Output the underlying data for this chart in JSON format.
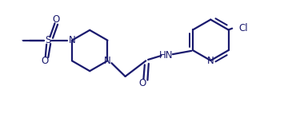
{
  "background_color": "#ffffff",
  "line_color": "#1a1a6e",
  "text_color": "#1a1a6e",
  "line_width": 1.6,
  "font_size": 8.5,
  "figsize": [
    3.6,
    1.57
  ],
  "dpi": 100,
  "xlim": [
    0,
    10
  ],
  "ylim": [
    0,
    4.36
  ]
}
